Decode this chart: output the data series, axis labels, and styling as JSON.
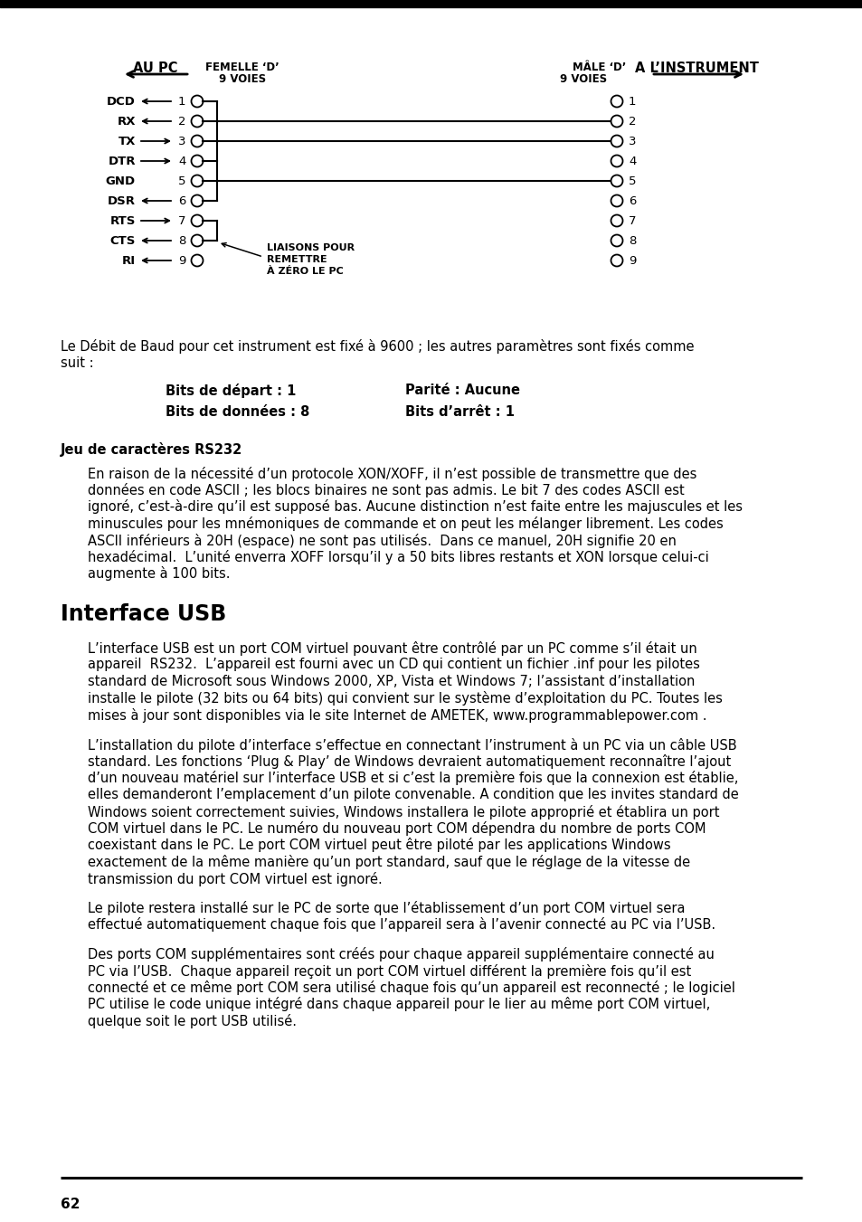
{
  "bg_color": "#ffffff",
  "page_number": "62",
  "header_aupc": "AU PC",
  "header_femelle": "FEMELLE ‘D’",
  "header_9voies_l": "9 VOIES",
  "header_male": "MÂLE ‘D’",
  "header_9voies_r": "9 VOIES",
  "header_instrument": "A L’INSTRUMENT",
  "pins": [
    "DCD",
    "RX",
    "TX",
    "DTR",
    "GND",
    "DSR",
    "RTS",
    "CTS",
    "RI"
  ],
  "pin_arrows": [
    "left",
    "left",
    "right",
    "right",
    "none",
    "left",
    "right",
    "left",
    "left"
  ],
  "liaisons_text_lines": [
    "LIAISONS POUR",
    "REMETTRE",
    "À ZÉRO LE PC"
  ],
  "baud_line1": "Le Débit de Baud pour cet instrument est fixé à 9600 ; les autres paramètres sont fixés comme",
  "baud_line2": "suit :",
  "bits_depart": "Bits de départ : 1",
  "parite": "Parité : Aucune",
  "bits_donnees": "Bits de données : 8",
  "bits_arret": "Bits d’arrêt : 1",
  "rs232_title": "Jeu de caractères RS232",
  "rs232_lines": [
    "En raison de la nécessité d’un protocole XON/XOFF, il n’est possible de transmettre que des",
    "données en code ASCII ; les blocs binaires ne sont pas admis. Le bit 7 des codes ASCII est",
    "ignoré, c’est-à-dire qu’il est supposé bas. Aucune distinction n’est faite entre les majuscules et les",
    "minuscules pour les mnémoniques de commande et on peut les mélanger librement. Les codes",
    "ASCII inférieurs à 20H (espace) ne sont pas utilisés.  Dans ce manuel, 20H signifie 20 en",
    "hexadécimal.  L’unité enverra XOFF lorsqu’il y a 50 bits libres restants et XON lorsque celui-ci",
    "augmente à 100 bits."
  ],
  "usb_title": "Interface USB",
  "usb_para1_lines": [
    "L’interface USB est un port COM virtuel pouvant être contrôlé par un PC comme s’il était un",
    "appareil  RS232.  L’appareil est fourni avec un CD qui contient un fichier .inf pour les pilotes",
    "standard de Microsoft sous Windows 2000, XP, Vista et Windows 7; l’assistant d’installation",
    "installe le pilote (32 bits ou 64 bits) qui convient sur le système d’exploitation du PC. Toutes les",
    "mises à jour sont disponibles via le site Internet de AMETEK, www.programmablepower.com ."
  ],
  "usb_para2_lines": [
    "L’installation du pilote d’interface s’effectue en connectant l’instrument à un PC via un câble USB",
    "standard. Les fonctions ‘Plug & Play’ de Windows devraient automatiquement reconnaître l’ajout",
    "d’un nouveau matériel sur l’interface USB et si c’est la première fois que la connexion est établie,",
    "elles demanderont l’emplacement d’un pilote convenable. A condition que les invites standard de",
    "Windows soient correctement suivies, Windows installera le pilote approprié et établira un port",
    "COM virtuel dans le PC. Le numéro du nouveau port COM dépendra du nombre de ports COM",
    "coexistant dans le PC. Le port COM virtuel peut être piloté par les applications Windows",
    "exactement de la même manière qu’un port standard, sauf que le réglage de la vitesse de",
    "transmission du port COM virtuel est ignoré."
  ],
  "usb_para3_lines": [
    "Le pilote restera installé sur le PC de sorte que l’établissement d’un port COM virtuel sera",
    "effectué automatiquement chaque fois que l’appareil sera à l’avenir connecté au PC via l’USB."
  ],
  "usb_para4_lines": [
    "Des ports COM supplémentaires sont créés pour chaque appareil supplémentaire connecté au",
    "PC via l’USB.  Chaque appareil reçoit un port COM virtuel différent la première fois qu’il est",
    "connecté et ce même port COM sera utilisé chaque fois qu’un appareil est reconnecté ; le logiciel",
    "PC utilise le code unique intégré dans chaque appareil pour le lier au même port COM virtuel,",
    "quelque soit le port USB utilisé."
  ]
}
